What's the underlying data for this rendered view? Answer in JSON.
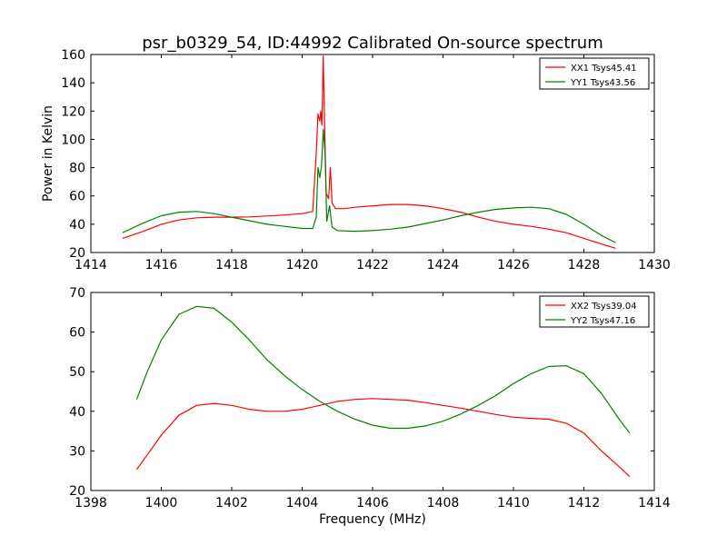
{
  "chart_data": [
    {
      "type": "line",
      "title": "psr_b0329_54, ID:44992 Calibrated On-source spectrum",
      "xlabel": "",
      "ylabel": "Power in Kelvin",
      "xlim": [
        1414,
        1430
      ],
      "ylim": [
        20,
        160
      ],
      "xticks": [
        1414,
        1416,
        1418,
        1420,
        1422,
        1424,
        1426,
        1428,
        1430
      ],
      "yticks": [
        20,
        40,
        60,
        80,
        100,
        120,
        140,
        160
      ],
      "grid": false,
      "legend_position": "top-right",
      "series": [
        {
          "name": "XX1 Tsys45.41",
          "color": "#ff0000",
          "points": [
            [
              1414.9,
              30
            ],
            [
              1415.5,
              35
            ],
            [
              1416.0,
              40
            ],
            [
              1416.5,
              43
            ],
            [
              1417.0,
              44.5
            ],
            [
              1417.5,
              45
            ],
            [
              1418.0,
              45
            ],
            [
              1418.5,
              45.2
            ],
            [
              1419.0,
              45.8
            ],
            [
              1419.5,
              46.5
            ],
            [
              1420.0,
              47.5
            ],
            [
              1420.3,
              49
            ],
            [
              1420.4,
              90
            ],
            [
              1420.45,
              118
            ],
            [
              1420.5,
              113
            ],
            [
              1420.53,
              120
            ],
            [
              1420.56,
              110
            ],
            [
              1420.6,
              159
            ],
            [
              1420.63,
              120
            ],
            [
              1420.68,
              62
            ],
            [
              1420.75,
              58
            ],
            [
              1420.8,
              80
            ],
            [
              1420.85,
              55
            ],
            [
              1420.95,
              51
            ],
            [
              1421.2,
              51
            ],
            [
              1421.5,
              52
            ],
            [
              1422.0,
              53
            ],
            [
              1422.5,
              54
            ],
            [
              1423.0,
              54
            ],
            [
              1423.5,
              53
            ],
            [
              1424.0,
              51
            ],
            [
              1424.5,
              48.5
            ],
            [
              1425.0,
              45
            ],
            [
              1425.5,
              42
            ],
            [
              1426.0,
              40
            ],
            [
              1426.5,
              38.5
            ],
            [
              1427.0,
              36.5
            ],
            [
              1427.5,
              34
            ],
            [
              1428.0,
              30
            ],
            [
              1428.5,
              26
            ],
            [
              1428.9,
              23
            ]
          ]
        },
        {
          "name": "YY1 Tsys43.56",
          "color": "#008000",
          "points": [
            [
              1414.9,
              34
            ],
            [
              1415.5,
              41
            ],
            [
              1416.0,
              46
            ],
            [
              1416.5,
              48.5
            ],
            [
              1417.0,
              49
            ],
            [
              1417.5,
              47.5
            ],
            [
              1418.0,
              45
            ],
            [
              1418.5,
              42.5
            ],
            [
              1419.0,
              40
            ],
            [
              1419.5,
              38.5
            ],
            [
              1420.0,
              37
            ],
            [
              1420.3,
              37
            ],
            [
              1420.4,
              45
            ],
            [
              1420.45,
              80
            ],
            [
              1420.5,
              73
            ],
            [
              1420.55,
              81
            ],
            [
              1420.6,
              107
            ],
            [
              1420.65,
              90
            ],
            [
              1420.7,
              42
            ],
            [
              1420.78,
              53
            ],
            [
              1420.85,
              38
            ],
            [
              1421.0,
              35.5
            ],
            [
              1421.5,
              35
            ],
            [
              1422.0,
              35.5
            ],
            [
              1422.5,
              36.5
            ],
            [
              1423.0,
              38
            ],
            [
              1423.5,
              40.5
            ],
            [
              1424.0,
              43
            ],
            [
              1424.5,
              46
            ],
            [
              1425.0,
              48.5
            ],
            [
              1425.5,
              50.5
            ],
            [
              1426.0,
              51.5
            ],
            [
              1426.5,
              52
            ],
            [
              1427.0,
              51
            ],
            [
              1427.5,
              47
            ],
            [
              1428.0,
              40
            ],
            [
              1428.5,
              32
            ],
            [
              1428.9,
              27
            ]
          ]
        }
      ]
    },
    {
      "type": "line",
      "title": "",
      "xlabel": "Frequency (MHz)",
      "ylabel": "",
      "xlim": [
        1398,
        1414
      ],
      "ylim": [
        20,
        70
      ],
      "xticks": [
        1398,
        1400,
        1402,
        1404,
        1406,
        1408,
        1410,
        1412,
        1414
      ],
      "yticks": [
        20,
        30,
        40,
        50,
        60,
        70
      ],
      "grid": false,
      "legend_position": "top-right",
      "series": [
        {
          "name": "XX2 Tsys39.04",
          "color": "#ff0000",
          "points": [
            [
              1399.3,
              25.3
            ],
            [
              1399.6,
              29
            ],
            [
              1400.0,
              34
            ],
            [
              1400.5,
              39
            ],
            [
              1401.0,
              41.5
            ],
            [
              1401.5,
              42
            ],
            [
              1402.0,
              41.5
            ],
            [
              1402.5,
              40.5
            ],
            [
              1403.0,
              40
            ],
            [
              1403.5,
              40
            ],
            [
              1404.0,
              40.5
            ],
            [
              1404.5,
              41.5
            ],
            [
              1405.0,
              42.5
            ],
            [
              1405.5,
              43
            ],
            [
              1406.0,
              43.2
            ],
            [
              1406.5,
              43
            ],
            [
              1407.0,
              42.8
            ],
            [
              1407.5,
              42.2
            ],
            [
              1408.0,
              41.5
            ],
            [
              1408.5,
              40.8
            ],
            [
              1409.0,
              40
            ],
            [
              1409.5,
              39.2
            ],
            [
              1410.0,
              38.5
            ],
            [
              1410.5,
              38.2
            ],
            [
              1411.0,
              38
            ],
            [
              1411.5,
              37
            ],
            [
              1412.0,
              34.5
            ],
            [
              1412.5,
              30
            ],
            [
              1413.0,
              26
            ],
            [
              1413.3,
              23.5
            ]
          ]
        },
        {
          "name": "YY2 Tsys47.16",
          "color": "#008000",
          "points": [
            [
              1399.3,
              43
            ],
            [
              1399.6,
              50
            ],
            [
              1400.0,
              58
            ],
            [
              1400.5,
              64.5
            ],
            [
              1401.0,
              66.5
            ],
            [
              1401.5,
              66
            ],
            [
              1402.0,
              62.5
            ],
            [
              1402.5,
              58
            ],
            [
              1403.0,
              53
            ],
            [
              1403.5,
              49
            ],
            [
              1404.0,
              45.5
            ],
            [
              1404.5,
              42.5
            ],
            [
              1405.0,
              40
            ],
            [
              1405.5,
              38
            ],
            [
              1406.0,
              36.5
            ],
            [
              1406.5,
              35.7
            ],
            [
              1407.0,
              35.7
            ],
            [
              1407.5,
              36.3
            ],
            [
              1408.0,
              37.5
            ],
            [
              1408.5,
              39.3
            ],
            [
              1409.0,
              41.5
            ],
            [
              1409.5,
              44
            ],
            [
              1410.0,
              47
            ],
            [
              1410.5,
              49.5
            ],
            [
              1411.0,
              51.3
            ],
            [
              1411.5,
              51.5
            ],
            [
              1412.0,
              49.5
            ],
            [
              1412.5,
              44.5
            ],
            [
              1413.0,
              38
            ],
            [
              1413.3,
              34.5
            ]
          ]
        }
      ]
    }
  ]
}
